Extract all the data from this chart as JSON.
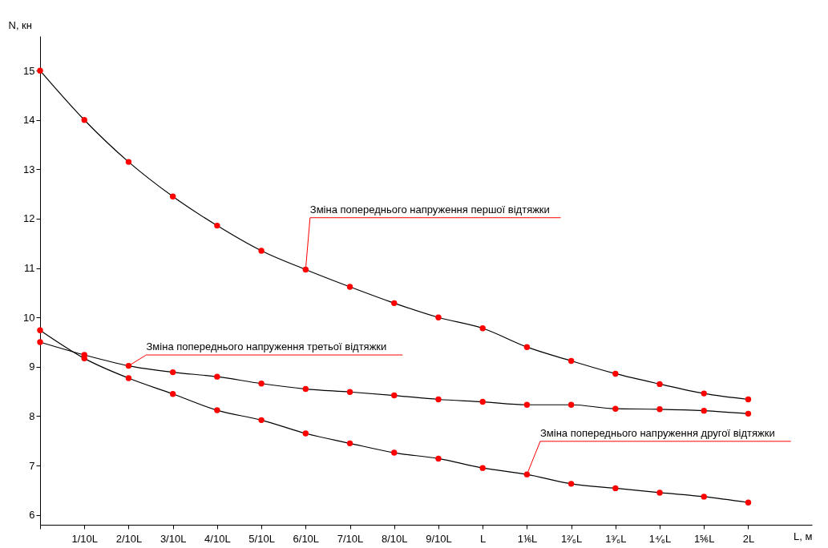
{
  "chart_data": {
    "type": "line",
    "xlabel": "L, м",
    "ylabel": "N, кн",
    "categories": [
      null,
      "1/10L",
      "2/10L",
      "3/10L",
      "4/10L",
      "5/10L",
      "6/10L",
      "7/10L",
      "8/10L",
      "9/10L",
      "L",
      "1⅙L",
      "1²⁄₆L",
      "1³⁄₆L",
      "1⁴⁄₆L",
      "1⅚L",
      "2L"
    ],
    "series": [
      {
        "color": "#000000",
        "colors": [
          "#ff0000",
          "#ff0000",
          "#ff0000",
          "#ff0000",
          "#ff0000",
          "#ff0000",
          "#ff0000",
          "#ff0000",
          "#ff0000",
          "#ff0000",
          "#ff0000",
          "#ff0000",
          "#ff0000",
          "#ff0000",
          "#ff0000",
          "#ff0000",
          "#ff0000"
        ],
        "values": [
          15.0,
          14.0,
          13.15,
          12.45,
          11.86,
          11.35,
          10.97,
          10.62,
          10.29,
          10.0,
          9.78,
          9.4,
          9.12,
          8.86,
          8.65,
          8.46,
          8.34
        ]
      },
      {
        "color": "#000000",
        "colors": [
          "#ff0000",
          "#ff0000",
          "#ff0000",
          "#ff0000",
          "#ff0000",
          "#ff0000",
          "#ff0000",
          "#ff0000",
          "#ff0000",
          "#ff0000",
          "#ff0000",
          "#ff0000",
          "#ff0000",
          "#ff0000",
          "#ff0000",
          "#ff0000",
          "#ff0000"
        ],
        "values": [
          9.5,
          9.24,
          9.02,
          8.89,
          8.8,
          8.66,
          8.55,
          8.49,
          8.42,
          8.34,
          8.29,
          8.23,
          8.23,
          8.15,
          8.14,
          8.11,
          8.05
        ]
      },
      {
        "color": "#000000",
        "colors": [
          "#ff0000",
          "#ff0000",
          "#ff0000",
          "#ff0000",
          "#ff0000",
          "#ff0000",
          "#ff0000",
          "#ff0000",
          "#ff0000",
          "#ff0000",
          "#ff0000",
          "#ff0000",
          "#ff0000",
          "#ff0000",
          "#ff0000",
          "#ff0000",
          "#ff0000"
        ],
        "values": [
          9.74,
          9.17,
          8.77,
          8.45,
          8.12,
          7.92,
          7.65,
          7.45,
          7.26,
          7.14,
          6.95,
          6.82,
          6.63,
          6.54,
          6.45,
          6.37,
          6.25
        ]
      }
    ],
    "annotations": [
      {
        "text": "Зміна попереднього напруження першої відтяжки",
        "x": "6/10L",
        "y": 10.97
      },
      {
        "text": "Зміна попереднього напруження третьої відтяжки",
        "x": "2/10L",
        "y": 9.02
      },
      {
        "text": "Зміна попереднього напруження другої відтяжки",
        "x": "1⅙L",
        "y": 6.82
      }
    ],
    "ylim": [
      5.8,
      15.7
    ],
    "yticks": [
      6,
      7,
      8,
      9,
      10,
      11,
      12,
      13,
      14,
      15
    ],
    "marker": "circle",
    "line_style": "solid"
  }
}
